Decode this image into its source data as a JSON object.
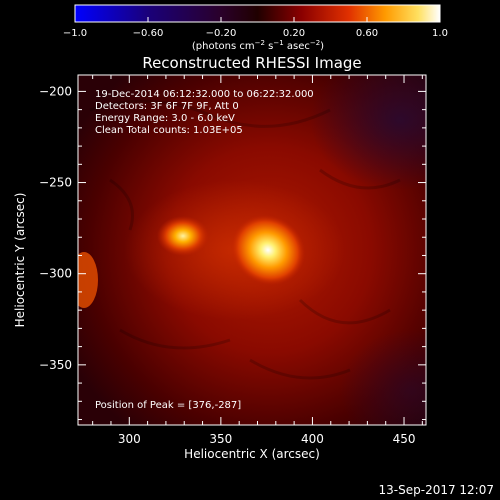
{
  "colorbar": {
    "ticks": [
      "−1.0",
      "−0.60",
      "−0.20",
      "0.20",
      "0.60",
      "1.0"
    ],
    "units_main": "(photons cm",
    "units_sup1": "−2",
    "units_mid1": " s",
    "units_sup2": "−1",
    "units_mid2": " asec",
    "units_sup3": "−2",
    "units_end": ")",
    "colors": [
      "#0000ff",
      "#1a007a",
      "#2a002a",
      "#200000",
      "#8a0000",
      "#e03000",
      "#ff9a00",
      "#ffe060",
      "#ffffff"
    ]
  },
  "plot": {
    "title": "Reconstructed RHESSI Image",
    "info_lines": [
      "19-Dec-2014 06:12:32.000 to 06:22:32.000",
      "Detectors: 3F 6F 7F 9F, Att 0",
      "Energy Range: 3.0 - 6.0 keV",
      "Clean    Total counts: 1.03E+05"
    ],
    "peak_text": "Position of Peak = [376,-287]",
    "xlabel": "Heliocentric X (arcsec)",
    "ylabel": "Heliocentric Y (arcsec)",
    "xticks": [
      "300",
      "350",
      "400",
      "450"
    ],
    "yticks": [
      "−200",
      "−250",
      "−300",
      "−350"
    ],
    "xlim": [
      272,
      462
    ],
    "ylim": [
      -383,
      -191
    ]
  },
  "footer": {
    "timestamp": "13-Sep-2017 12:07"
  }
}
